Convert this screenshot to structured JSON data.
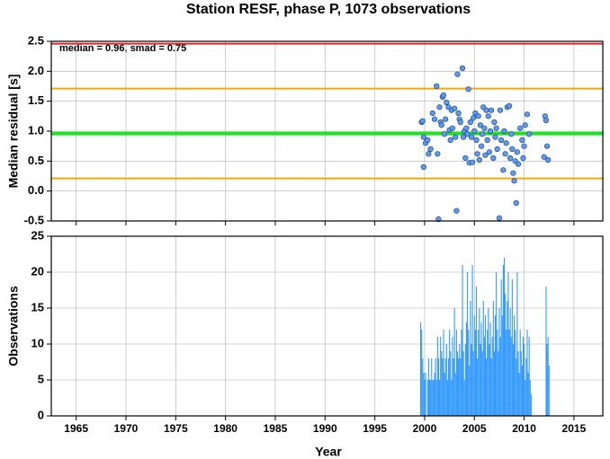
{
  "chart_data": [
    {
      "type": "scatter",
      "title": "Station RESF, phase P, 1073 observations",
      "ylabel": "Median residual [s]",
      "annotation": "median = 0.96, smad = 0.75",
      "xlim": [
        1962.5,
        2017.9
      ],
      "xticks": [
        1965,
        1970,
        1975,
        1980,
        1985,
        1990,
        1995,
        2000,
        2005,
        2010,
        2015
      ],
      "ylim": [
        -0.5,
        2.5
      ],
      "yticks": [
        -0.5,
        {
          "value": 0,
          "label": "0.0"
        },
        0.5,
        {
          "value": 1,
          "label": "1.0"
        },
        1.5,
        {
          "value": 2,
          "label": "2.0"
        },
        2.5
      ],
      "grid": true,
      "color": "#5b9bf0",
      "hlines": [
        {
          "value": 2.46,
          "color": "#e8232a"
        },
        {
          "value": 1.71,
          "color": "#ffa500"
        },
        {
          "value": 0.96,
          "color": "#22e022"
        },
        {
          "value": 0.21,
          "color": "#ffa500"
        }
      ],
      "x": [
        1999.7,
        1999.8,
        1999.9,
        1999.9,
        2000.1,
        2000.3,
        2000.4,
        2000.6,
        2000.8,
        2001.0,
        2001.2,
        2001.3,
        2001.4,
        2001.5,
        2001.6,
        2001.7,
        2001.8,
        2001.9,
        2002.0,
        2002.1,
        2002.2,
        2002.4,
        2002.5,
        2002.6,
        2002.7,
        2002.8,
        2003.0,
        2003.1,
        2003.2,
        2003.3,
        2003.4,
        2003.5,
        2003.6,
        2003.8,
        2003.9,
        2004.0,
        2004.1,
        2004.2,
        2004.3,
        2004.4,
        2004.5,
        2004.6,
        2004.7,
        2004.8,
        2004.9,
        2005.0,
        2005.1,
        2005.2,
        2005.3,
        2005.4,
        2005.5,
        2005.6,
        2005.7,
        2005.8,
        2005.9,
        2006.0,
        2006.1,
        2006.2,
        2006.3,
        2006.4,
        2006.5,
        2006.6,
        2006.7,
        2006.9,
        2007.0,
        2007.1,
        2007.2,
        2007.3,
        2007.5,
        2007.6,
        2007.7,
        2007.9,
        2008.0,
        2008.1,
        2008.2,
        2008.3,
        2008.5,
        2008.6,
        2008.7,
        2008.8,
        2008.9,
        2009.0,
        2009.1,
        2009.2,
        2009.3,
        2009.4,
        2009.6,
        2009.8,
        2009.9,
        2010.0,
        2010.1,
        2010.3,
        2010.5,
        2012.0,
        2012.1,
        2012.2,
        2012.3,
        2012.4
      ],
      "values": [
        1.15,
        1.17,
        0.9,
        0.4,
        0.8,
        0.85,
        0.62,
        0.7,
        1.3,
        1.2,
        1.75,
        0.62,
        -0.47,
        1.4,
        1.15,
        1.1,
        1.57,
        1.6,
        0.95,
        1.2,
        1.48,
        1.4,
        1.02,
        0.85,
        1.35,
        1.05,
        1.38,
        0.9,
        -0.33,
        1.95,
        1.3,
        1.2,
        1.15,
        2.05,
        0.9,
        1.0,
        0.55,
        1.05,
        0.95,
        1.7,
        0.47,
        1.15,
        0.9,
        0.48,
        1.22,
        1.0,
        1.3,
        0.85,
        0.62,
        1.25,
        0.52,
        1.1,
        0.75,
        0.95,
        1.4,
        1.05,
        0.6,
        1.35,
        0.85,
        1.25,
        0.65,
        1.0,
        1.35,
        0.55,
        1.15,
        0.9,
        1.05,
        0.7,
        -0.45,
        1.35,
        0.85,
        0.35,
        1.0,
        0.62,
        0.8,
        1.4,
        1.42,
        0.55,
        0.95,
        0.7,
        0.3,
        0.17,
        0.5,
        -0.2,
        0.65,
        0.45,
        1.05,
        0.85,
        0.55,
        0.75,
        1.1,
        1.28,
        0.95,
        0.57,
        1.25,
        1.18,
        0.75,
        0.52
      ]
    },
    {
      "type": "bar",
      "ylabel": "Observations",
      "xlabel": "Year",
      "xlim": [
        1962.5,
        2017.9
      ],
      "xticks": [
        1965,
        1970,
        1975,
        1980,
        1985,
        1990,
        1995,
        2000,
        2005,
        2010,
        2015
      ],
      "ylim": [
        0,
        25
      ],
      "yticks": [
        0,
        5,
        10,
        15,
        20,
        25
      ],
      "grid": true,
      "color": "#3399ff",
      "x": [
        1999.6,
        1999.7,
        1999.8,
        1999.9,
        2000.0,
        2000.1,
        2000.2,
        2000.3,
        2000.4,
        2000.5,
        2000.6,
        2000.7,
        2000.8,
        2000.9,
        2001.0,
        2001.1,
        2001.2,
        2001.3,
        2001.4,
        2001.5,
        2001.6,
        2001.7,
        2001.8,
        2001.9,
        2002.0,
        2002.1,
        2002.2,
        2002.3,
        2002.4,
        2002.5,
        2002.6,
        2002.7,
        2002.8,
        2002.9,
        2003.0,
        2003.1,
        2003.2,
        2003.3,
        2003.4,
        2003.5,
        2003.6,
        2003.7,
        2003.8,
        2003.9,
        2004.0,
        2004.1,
        2004.2,
        2004.3,
        2004.4,
        2004.5,
        2004.6,
        2004.7,
        2004.8,
        2004.9,
        2005.0,
        2005.1,
        2005.2,
        2005.3,
        2005.4,
        2005.5,
        2005.6,
        2005.7,
        2005.8,
        2005.9,
        2006.0,
        2006.1,
        2006.2,
        2006.3,
        2006.4,
        2006.5,
        2006.6,
        2006.7,
        2006.8,
        2006.9,
        2007.0,
        2007.1,
        2007.2,
        2007.3,
        2007.4,
        2007.5,
        2007.6,
        2007.7,
        2007.8,
        2007.9,
        2008.0,
        2008.1,
        2008.2,
        2008.3,
        2008.4,
        2008.5,
        2008.6,
        2008.7,
        2008.8,
        2008.9,
        2009.0,
        2009.1,
        2009.2,
        2009.3,
        2009.4,
        2009.5,
        2009.6,
        2009.7,
        2009.8,
        2009.9,
        2010.0,
        2010.1,
        2010.2,
        2010.3,
        2010.4,
        2010.5,
        2010.6,
        2010.7,
        2012.2,
        2012.3,
        2012.4,
        2012.5
      ],
      "values": [
        13,
        12,
        8,
        6,
        5,
        6,
        0,
        5,
        8,
        5,
        5,
        8,
        5,
        5,
        6,
        8,
        5,
        11,
        8,
        5,
        11,
        9,
        8,
        12,
        6,
        8,
        10,
        5,
        8,
        12,
        9,
        5,
        11,
        8,
        15,
        6,
        12,
        9,
        8,
        10,
        8,
        12,
        21,
        9,
        5,
        10,
        13,
        20,
        12,
        7,
        16,
        10,
        21,
        9,
        14,
        12,
        18,
        8,
        12,
        15,
        10,
        13,
        9,
        16,
        11,
        14,
        8,
        12,
        15,
        10,
        13,
        8,
        11,
        16,
        9,
        14,
        20,
        12,
        9,
        15,
        11,
        19,
        14,
        21,
        22,
        17,
        12,
        16,
        20,
        12,
        15,
        11,
        19,
        10,
        14,
        12,
        8,
        20,
        9,
        6,
        12,
        9,
        7,
        11,
        10,
        5,
        8,
        12,
        6,
        11,
        5,
        3,
        18,
        10,
        11,
        7
      ]
    }
  ]
}
